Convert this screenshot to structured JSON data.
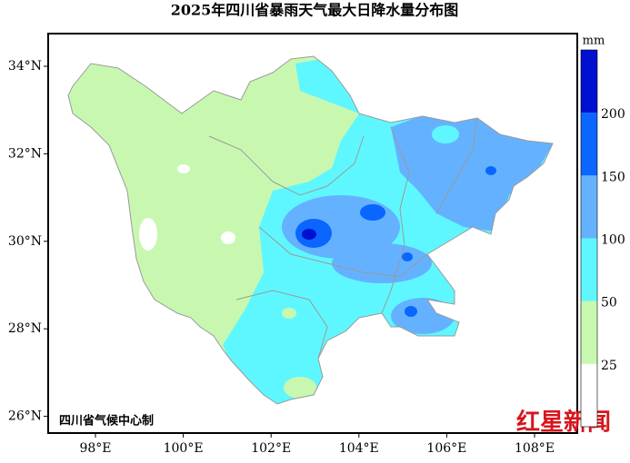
{
  "title": "2025年四川省暴雨天气最大日降水量分布图",
  "map": {
    "xticks": [
      {
        "value": 98,
        "label": "98°E"
      },
      {
        "value": 100,
        "label": "100°E"
      },
      {
        "value": 102,
        "label": "102°E"
      },
      {
        "value": 104,
        "label": "104°E"
      },
      {
        "value": 106,
        "label": "106°E"
      },
      {
        "value": 108,
        "label": "108°E"
      }
    ],
    "yticks": [
      {
        "value": 34,
        "label": "34°N"
      },
      {
        "value": 32,
        "label": "32°N"
      },
      {
        "value": 30,
        "label": "30°N"
      },
      {
        "value": 28,
        "label": "28°N"
      },
      {
        "value": 26,
        "label": "26°N"
      }
    ],
    "colorbar": {
      "unit": "mm",
      "levels": [
        25,
        50,
        100,
        150,
        200
      ],
      "colors": [
        "#ffffff",
        "#c8f8b0",
        "#5ff7ff",
        "#64b2ff",
        "#0a66ff",
        "#0010d0"
      ]
    }
  },
  "credit": "四川省气候中心制",
  "watermark": "红星新闻"
}
